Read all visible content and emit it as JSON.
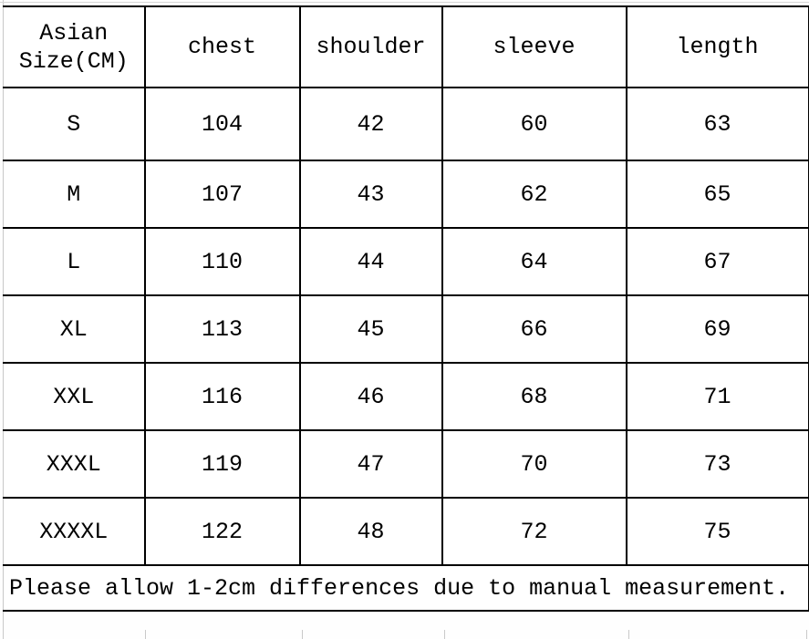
{
  "chart_data": {
    "type": "table",
    "columns": [
      "Asian Size(CM)",
      "chest",
      "shoulder",
      "sleeve",
      "length"
    ],
    "rows": [
      [
        "S",
        "104",
        "42",
        "60",
        "63"
      ],
      [
        "M",
        "107",
        "43",
        "62",
        "65"
      ],
      [
        "L",
        "110",
        "44",
        "64",
        "67"
      ],
      [
        "XL",
        "113",
        "45",
        "66",
        "69"
      ],
      [
        "XXL",
        "116",
        "46",
        "68",
        "71"
      ],
      [
        "XXXL",
        "119",
        "47",
        "70",
        "73"
      ],
      [
        "XXXXL",
        "122",
        "48",
        "72",
        "75"
      ]
    ],
    "note": "Please allow 1-2cm differences due to manual measurement.",
    "layout": {
      "grid": "on",
      "border_color": "#000000",
      "gridline_color": "#c9c9c9",
      "background_color": "#ffffff",
      "text_color": "#000000"
    }
  }
}
